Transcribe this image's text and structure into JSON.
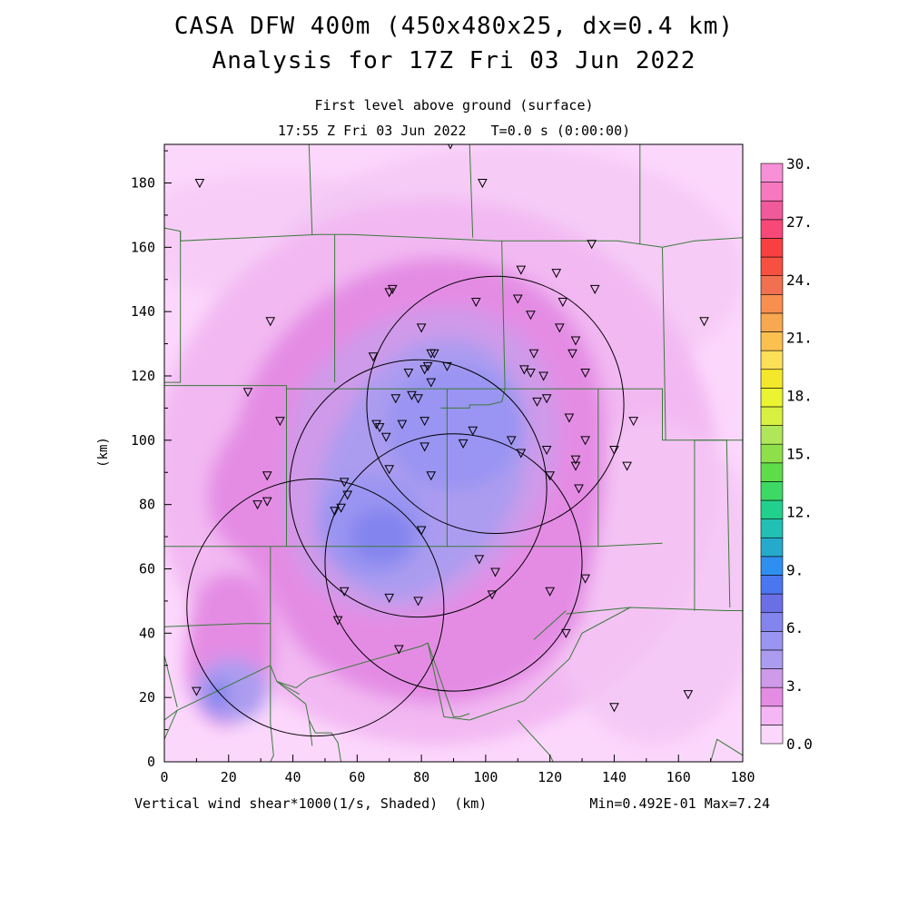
{
  "title": {
    "line1": "CASA DFW 400m (450x480x25, dx=0.4 km)",
    "line2": "Analysis for 17Z Fri 03 Jun 2022",
    "line3": "First level above ground (surface)",
    "line4": "17:55 Z Fri 03 Jun 2022   T=0.0 s (0:00:00)"
  },
  "axes": {
    "x_label": "Vertical wind shear*1000(1/s, Shaded)  (km)",
    "y_label": "(km)",
    "x_ticks": [
      "0",
      "20",
      "40",
      "60",
      "80",
      "100",
      "120",
      "140",
      "160",
      "180"
    ],
    "y_ticks": [
      "0",
      "20",
      "40",
      "60",
      "80",
      "100",
      "120",
      "140",
      "160",
      "180"
    ],
    "x_range": [
      0,
      180
    ],
    "y_range": [
      0,
      192
    ]
  },
  "stats": {
    "text": "Min=0.492E-01 Max=7.24"
  },
  "colorbar": {
    "labels": [
      "30.",
      "27.",
      "24.",
      "21.",
      "18.",
      "15.",
      "12.",
      "9.",
      "6.",
      "3.",
      "0.0"
    ],
    "levels_min": 0,
    "levels_max": 30,
    "colors": [
      "#fcd7fc",
      "#f4b6f4",
      "#e48ce4",
      "#cf9ae9",
      "#ac9cf0",
      "#9a94f2",
      "#8484ee",
      "#6b6fe6",
      "#4a77f0",
      "#2f8ff0",
      "#26aacc",
      "#22c0b4",
      "#22d08e",
      "#3ed865",
      "#5edc4a",
      "#8ee04a",
      "#b0e65a",
      "#d8f040",
      "#eaf430",
      "#f4e82a",
      "#fde058",
      "#fcc050",
      "#f8a850",
      "#f88f50",
      "#f07050",
      "#f85040",
      "#f84040",
      "#f84878",
      "#f05a9a",
      "#f878c0",
      "#f890d8"
    ]
  },
  "radars": [
    {
      "cx": 103,
      "cy": 111
    },
    {
      "cx": 79,
      "cy": 85
    },
    {
      "cx": 47,
      "cy": 48
    },
    {
      "cx": 90,
      "cy": 62
    }
  ],
  "stations": [
    [
      11,
      180
    ],
    [
      89,
      192
    ],
    [
      99,
      180
    ],
    [
      133,
      161
    ],
    [
      111,
      153
    ],
    [
      122,
      152
    ],
    [
      71,
      147
    ],
    [
      70,
      146
    ],
    [
      134,
      147
    ],
    [
      33,
      137
    ],
    [
      97,
      143
    ],
    [
      110,
      144
    ],
    [
      124,
      143
    ],
    [
      114,
      139
    ],
    [
      80,
      135
    ],
    [
      123,
      135
    ],
    [
      128,
      131
    ],
    [
      65,
      126
    ],
    [
      83,
      127
    ],
    [
      84,
      127
    ],
    [
      115,
      127
    ],
    [
      127,
      127
    ],
    [
      82,
      123
    ],
    [
      88,
      123
    ],
    [
      76,
      121
    ],
    [
      81,
      122
    ],
    [
      112,
      122
    ],
    [
      114,
      121
    ],
    [
      118,
      120
    ],
    [
      131,
      121
    ],
    [
      83,
      118
    ],
    [
      72,
      113
    ],
    [
      77,
      114
    ],
    [
      79,
      113
    ],
    [
      26,
      115
    ],
    [
      119,
      113
    ],
    [
      116,
      112
    ],
    [
      126,
      107
    ],
    [
      146,
      106
    ],
    [
      36,
      106
    ],
    [
      66,
      105
    ],
    [
      67,
      104
    ],
    [
      74,
      105
    ],
    [
      81,
      106
    ],
    [
      69,
      101
    ],
    [
      96,
      103
    ],
    [
      93,
      99
    ],
    [
      108,
      100
    ],
    [
      131,
      100
    ],
    [
      81,
      98
    ],
    [
      140,
      97
    ],
    [
      119,
      97
    ],
    [
      111,
      96
    ],
    [
      128,
      94
    ],
    [
      128,
      92
    ],
    [
      144,
      92
    ],
    [
      70,
      91
    ],
    [
      83,
      89
    ],
    [
      120,
      89
    ],
    [
      32,
      89
    ],
    [
      129,
      85
    ],
    [
      56,
      87
    ],
    [
      57,
      83
    ],
    [
      32,
      81
    ],
    [
      29,
      80
    ],
    [
      55,
      79
    ],
    [
      53,
      78
    ],
    [
      80,
      72
    ],
    [
      98,
      63
    ],
    [
      103,
      59
    ],
    [
      131,
      57
    ],
    [
      56,
      53
    ],
    [
      102,
      52
    ],
    [
      120,
      53
    ],
    [
      70,
      51
    ],
    [
      79,
      50
    ],
    [
      54,
      44
    ],
    [
      125,
      40
    ],
    [
      73,
      35
    ],
    [
      140,
      17
    ],
    [
      163,
      21
    ],
    [
      10,
      22
    ],
    [
      168,
      137
    ]
  ],
  "county_lines": [
    [
      [
        0,
        166
      ],
      [
        5,
        165
      ],
      [
        5,
        162
      ],
      [
        48,
        164
      ],
      [
        58,
        164
      ],
      [
        103,
        162
      ],
      [
        141,
        162
      ],
      [
        148,
        161
      ],
      [
        155,
        160
      ],
      [
        165,
        162
      ],
      [
        180,
        163
      ]
    ],
    [
      [
        45,
        192
      ],
      [
        46,
        164
      ]
    ],
    [
      [
        95,
        192
      ],
      [
        96,
        163
      ]
    ],
    [
      [
        148,
        192
      ],
      [
        148,
        161
      ]
    ],
    [
      [
        5,
        165
      ],
      [
        5,
        118
      ],
      [
        0,
        118
      ]
    ],
    [
      [
        0,
        117
      ],
      [
        38,
        117
      ],
      [
        38,
        116
      ],
      [
        155,
        116
      ],
      [
        155,
        100
      ]
    ],
    [
      [
        155,
        100
      ],
      [
        180,
        100
      ]
    ],
    [
      [
        53,
        164
      ],
      [
        53,
        118
      ]
    ],
    [
      [
        105,
        162
      ],
      [
        106,
        116
      ]
    ],
    [
      [
        155,
        160
      ],
      [
        156,
        100
      ]
    ],
    [
      [
        106,
        116
      ],
      [
        105,
        112
      ],
      [
        101,
        111
      ],
      [
        95,
        111
      ],
      [
        95,
        110
      ],
      [
        86,
        110
      ]
    ],
    [
      [
        0,
        67
      ],
      [
        34,
        67
      ],
      [
        38,
        67
      ],
      [
        135,
        67
      ],
      [
        155,
        68
      ]
    ],
    [
      [
        38,
        117
      ],
      [
        38,
        67
      ]
    ],
    [
      [
        88,
        116
      ],
      [
        88,
        67
      ]
    ],
    [
      [
        135,
        116
      ],
      [
        135,
        67
      ]
    ],
    [
      [
        165,
        100
      ],
      [
        165,
        47
      ]
    ],
    [
      [
        165,
        100
      ],
      [
        175,
        100
      ],
      [
        176,
        48
      ]
    ],
    [
      [
        180,
        47
      ],
      [
        175,
        47
      ],
      [
        145,
        48
      ],
      [
        125,
        46
      ]
    ],
    [
      [
        33,
        67
      ],
      [
        33,
        12
      ],
      [
        34,
        2
      ],
      [
        33,
        0
      ]
    ],
    [
      [
        0,
        42
      ],
      [
        25,
        43
      ],
      [
        33,
        43
      ]
    ],
    [
      [
        0,
        13
      ],
      [
        4,
        16
      ],
      [
        33,
        30
      ]
    ],
    [
      [
        0,
        33
      ],
      [
        4,
        17
      ]
    ],
    [
      [
        0,
        7
      ],
      [
        4,
        16
      ]
    ],
    [
      [
        33,
        30
      ],
      [
        35,
        25
      ],
      [
        41,
        23
      ],
      [
        45,
        26
      ],
      [
        80,
        36
      ],
      [
        82,
        37
      ]
    ],
    [
      [
        82,
        37
      ],
      [
        87,
        14
      ],
      [
        95,
        13
      ]
    ],
    [
      [
        82,
        37
      ],
      [
        90,
        14
      ],
      [
        92,
        14
      ],
      [
        95,
        15
      ]
    ],
    [
      [
        35,
        25
      ],
      [
        42,
        21
      ]
    ],
    [
      [
        35,
        25
      ],
      [
        44,
        18
      ],
      [
        45,
        13
      ],
      [
        47,
        9
      ],
      [
        52,
        9
      ],
      [
        54,
        6
      ],
      [
        55,
        0
      ]
    ],
    [
      [
        95,
        13
      ],
      [
        112,
        19
      ],
      [
        126,
        32
      ],
      [
        130,
        40
      ],
      [
        145,
        48
      ]
    ],
    [
      [
        110,
        13
      ],
      [
        120,
        2
      ],
      [
        121,
        0
      ]
    ],
    [
      [
        125,
        47
      ],
      [
        115,
        38
      ]
    ],
    [
      [
        45,
        13
      ],
      [
        46,
        5
      ]
    ],
    [
      [
        180,
        2
      ],
      [
        172,
        7
      ],
      [
        170,
        0
      ]
    ]
  ]
}
